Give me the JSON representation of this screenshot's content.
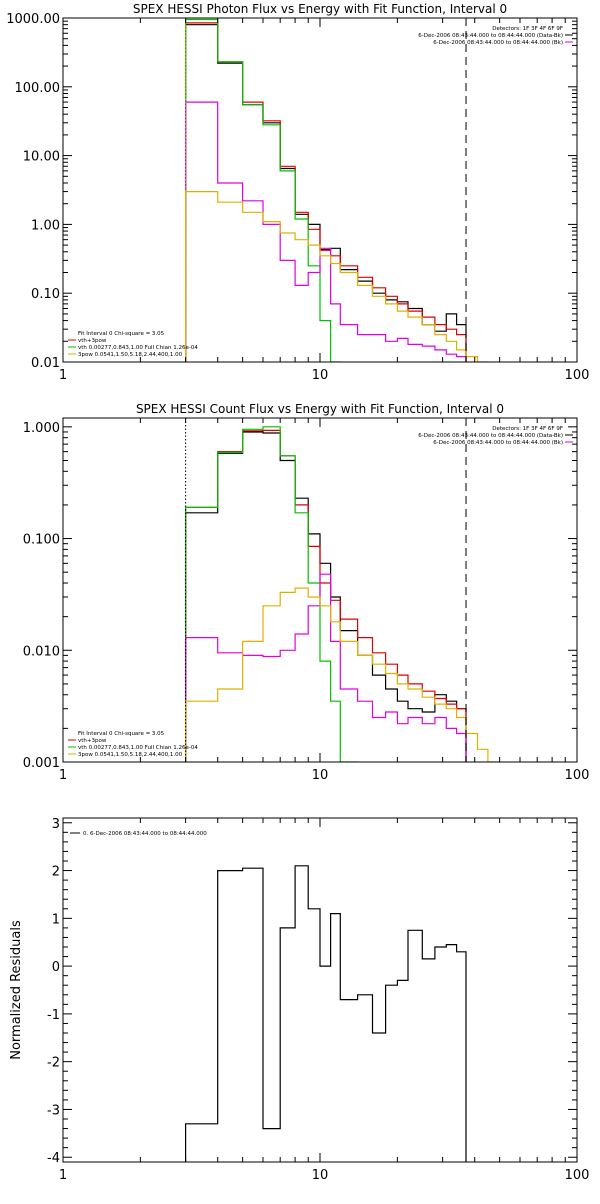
{
  "chart_data": [
    {
      "type": "line",
      "title": "SPEX HESSI Photon Flux vs Energy with Fit Function, Interval 0",
      "xlabel": "",
      "ylabel": "",
      "x_scale": "log",
      "y_scale": "log",
      "xlim": [
        1,
        100
      ],
      "ylim": [
        0.01,
        1000
      ],
      "x_ticks": [
        1,
        10,
        100
      ],
      "x_tick_labels": [
        "1",
        "10",
        "100"
      ],
      "y_ticks": [
        0.01,
        0.1,
        1,
        10,
        100,
        1000
      ],
      "y_tick_labels": [
        "0.01",
        "0.10",
        "1.00",
        "10.00",
        "100.00",
        "1000.00"
      ],
      "legend_top_right": [
        {
          "text": "Detectors: 1F 3F 4F 6F 9F",
          "color": "#000000"
        },
        {
          "text": "6-Dec-2006 08:43:44.000 to 08:44:44.000 (Data-Bk)",
          "color": "#000000"
        },
        {
          "text": "6-Dec-2006 08:43:44.000 to 08:44:44.000 (Bk)",
          "color": "#e000e0"
        }
      ],
      "legend_bottom_left": [
        {
          "text": "Fit Interval 0   Chi-square = 3.05",
          "color": "#000000"
        },
        {
          "text": "vth+3pow",
          "color": "#e00000"
        },
        {
          "text": "vth 0.00277,0.843,1.00   Full Chian 1.26e-04",
          "color": "#00c000"
        },
        {
          "text": "3pow 0.0541,1.50,5.18,2.44,400,1.00",
          "color": "#e0b000"
        }
      ],
      "vlines": [
        {
          "x": 3,
          "style": "dotted",
          "color": "#e0b000"
        },
        {
          "x": 37,
          "style": "dashed",
          "color": "#000000"
        }
      ],
      "series": [
        {
          "color": "#000000",
          "edges": [
            3,
            4,
            5,
            6,
            7,
            8,
            9,
            10,
            11,
            12,
            14,
            16,
            18,
            20,
            22,
            25,
            28,
            31,
            34,
            37
          ],
          "values": [
            800,
            220,
            55,
            30,
            6.5,
            1.4,
            1.0,
            0.43,
            0.45,
            0.22,
            0.15,
            0.1,
            0.08,
            0.075,
            0.06,
            0.035,
            0.028,
            0.05,
            0.035
          ]
        },
        {
          "color": "#e00000",
          "edges": [
            3,
            4,
            5,
            6,
            7,
            8,
            9,
            10,
            11,
            12,
            14,
            16,
            18,
            20,
            22,
            25,
            28,
            31,
            34,
            37
          ],
          "values": [
            850,
            230,
            60,
            32,
            7,
            1.5,
            0.85,
            0.42,
            0.35,
            0.25,
            0.17,
            0.12,
            0.09,
            0.07,
            0.055,
            0.045,
            0.035,
            0.03,
            0.025
          ]
        },
        {
          "color": "#00c000",
          "edges": [
            3,
            4,
            5,
            6,
            7,
            8,
            9,
            10,
            11,
            12
          ],
          "values": [
            950,
            230,
            55,
            28,
            6,
            1.2,
            0.25,
            0.04,
            0.01
          ]
        },
        {
          "color": "#e000e0",
          "edges": [
            3,
            4,
            5,
            6,
            7,
            8,
            9,
            10,
            11,
            12,
            14,
            16,
            18,
            20,
            22,
            25,
            28,
            31,
            34,
            37
          ],
          "values": [
            60,
            4,
            2.2,
            1.0,
            0.3,
            0.13,
            0.2,
            0.45,
            0.07,
            0.035,
            0.025,
            0.025,
            0.02,
            0.022,
            0.018,
            0.017,
            0.015,
            0.013,
            0.012
          ]
        },
        {
          "color": "#e0b000",
          "edges": [
            3,
            4,
            5,
            6,
            7,
            8,
            9,
            10,
            11,
            12,
            14,
            16,
            18,
            20,
            22,
            25,
            28,
            31,
            34,
            37,
            41,
            45
          ],
          "values": [
            3,
            2.1,
            1.5,
            1.1,
            0.75,
            0.6,
            0.5,
            0.35,
            0.27,
            0.2,
            0.13,
            0.09,
            0.07,
            0.055,
            0.045,
            0.035,
            0.025,
            0.02,
            0.015,
            0.012,
            0.01
          ]
        }
      ]
    },
    {
      "type": "line",
      "title": "SPEX HESSI Count Flux vs Energy with Fit Function, Interval 0",
      "xlabel": "",
      "ylabel": "",
      "x_scale": "log",
      "y_scale": "log",
      "xlim": [
        1,
        100
      ],
      "ylim": [
        0.001,
        1.2
      ],
      "x_ticks": [
        1,
        10,
        100
      ],
      "x_tick_labels": [
        "1",
        "10",
        "100"
      ],
      "y_ticks": [
        0.001,
        0.01,
        0.1,
        1
      ],
      "y_tick_labels": [
        "0.001",
        "0.010",
        "0.100",
        "1.000"
      ],
      "legend_top_right": [
        {
          "text": "Detectors: 1F 3F 4F 6F 9F",
          "color": "#000000"
        },
        {
          "text": "6-Dec-2006 08:43:44.000 to 08:44:44.000 (Data-Bk)",
          "color": "#000000"
        },
        {
          "text": "6-Dec-2006 08:43:44.000 to 08:44:44.000 (Bk)",
          "color": "#e000e0"
        }
      ],
      "legend_bottom_left": [
        {
          "text": "Fit Interval 0   Chi-square = 3.05",
          "color": "#000000"
        },
        {
          "text": "vth+3pow",
          "color": "#e00000"
        },
        {
          "text": "vth 0.00277,0.843,1.00   Full Chian 1.26e-04",
          "color": "#00c000"
        },
        {
          "text": "3pow 0.0541,1.50,5.18,2.44,400,1.00",
          "color": "#e0b000"
        }
      ],
      "vlines": [
        {
          "x": 3,
          "style": "dotted",
          "color": "#000000"
        },
        {
          "x": 37,
          "style": "dashed",
          "color": "#000000"
        }
      ],
      "series": [
        {
          "color": "#000000",
          "edges": [
            3,
            4,
            5,
            6,
            7,
            8,
            9,
            10,
            11,
            12,
            14,
            16,
            18,
            20,
            22,
            25,
            28,
            31,
            34,
            37
          ],
          "values": [
            0.17,
            0.58,
            0.9,
            0.88,
            0.5,
            0.23,
            0.11,
            0.06,
            0.03,
            0.015,
            0.009,
            0.006,
            0.0045,
            0.0035,
            0.003,
            0.0028,
            0.004,
            0.0035,
            0.003
          ]
        },
        {
          "color": "#e00000",
          "edges": [
            3,
            4,
            5,
            6,
            7,
            8,
            9,
            10,
            11,
            12,
            14,
            16,
            18,
            20,
            22,
            25,
            28,
            31,
            34,
            37
          ],
          "values": [
            0.19,
            0.6,
            0.92,
            0.93,
            0.55,
            0.2,
            0.085,
            0.04,
            0.028,
            0.019,
            0.013,
            0.0095,
            0.0075,
            0.006,
            0.005,
            0.0043,
            0.0037,
            0.0033,
            0.003
          ]
        },
        {
          "color": "#00c000",
          "edges": [
            3,
            4,
            5,
            6,
            7,
            8,
            9,
            10,
            11,
            12,
            14
          ],
          "values": [
            0.19,
            0.59,
            0.95,
            1.0,
            0.55,
            0.17,
            0.04,
            0.008,
            0.0035,
            0.001
          ]
        },
        {
          "color": "#e000e0",
          "edges": [
            3,
            4,
            5,
            6,
            7,
            8,
            9,
            10,
            11,
            12,
            14,
            16,
            18,
            20,
            22,
            25,
            28,
            31,
            34,
            37
          ],
          "values": [
            0.013,
            0.0095,
            0.009,
            0.0088,
            0.01,
            0.014,
            0.025,
            0.048,
            0.012,
            0.0045,
            0.0035,
            0.0025,
            0.0028,
            0.0022,
            0.0025,
            0.0022,
            0.0025,
            0.002,
            0.0018
          ]
        },
        {
          "color": "#e0b000",
          "edges": [
            3,
            4,
            5,
            6,
            7,
            8,
            9,
            10,
            11,
            12,
            14,
            16,
            18,
            20,
            22,
            25,
            28,
            31,
            34,
            37,
            41,
            45,
            50
          ],
          "values": [
            0.0035,
            0.0045,
            0.012,
            0.025,
            0.033,
            0.036,
            0.03,
            0.025,
            0.018,
            0.012,
            0.009,
            0.0075,
            0.0062,
            0.005,
            0.0045,
            0.0038,
            0.0033,
            0.003,
            0.0025,
            0.0018,
            0.0013,
            0.001
          ]
        }
      ]
    },
    {
      "type": "line",
      "title": "",
      "xlabel": "",
      "ylabel": "Normalized Residuals",
      "x_scale": "log",
      "y_scale": "linear",
      "xlim": [
        1,
        100
      ],
      "ylim": [
        -4.1,
        3.1
      ],
      "x_ticks": [
        1,
        10,
        100
      ],
      "x_tick_labels": [
        "1",
        "10",
        "100"
      ],
      "y_ticks": [
        -4,
        -3,
        -2,
        -1,
        0,
        1,
        2,
        3
      ],
      "y_tick_labels": [
        "-4",
        "-3",
        "-2",
        "-1",
        "0",
        "1",
        "2",
        "3"
      ],
      "legend_top_right": [],
      "legend_bottom_left": [],
      "legend_top_left": [
        {
          "text": "0.  6-Dec-2006 08:43:44.000 to 08:44:44.000",
          "color": "#000000"
        }
      ],
      "vlines": [],
      "series": [
        {
          "color": "#000000",
          "edges": [
            3,
            4,
            5,
            6,
            7,
            8,
            9,
            10,
            11,
            12,
            14,
            16,
            18,
            20,
            22,
            25,
            28,
            31,
            34,
            37
          ],
          "values": [
            -3.3,
            2.0,
            2.05,
            -3.4,
            0.8,
            2.1,
            1.2,
            0.0,
            1.1,
            -0.7,
            -0.6,
            -1.4,
            -0.4,
            -0.3,
            0.75,
            0.15,
            0.4,
            0.45,
            0.3
          ]
        }
      ]
    }
  ]
}
